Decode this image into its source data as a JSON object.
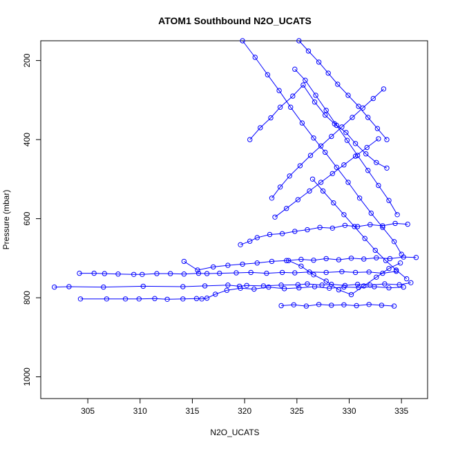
{
  "chart_data": {
    "type": "scatter",
    "title": "ATOM1 Southbound N2O_UCATS",
    "xlabel": "N2O_UCATS",
    "ylabel": "Pressure (mbar)",
    "xlim": [
      300.5,
      337.5
    ],
    "ylim": [
      1055,
      150
    ],
    "y_axis_reversed": true,
    "x_ticks": [
      305,
      310,
      315,
      320,
      325,
      330,
      335
    ],
    "y_ticks": [
      200,
      400,
      600,
      800,
      1000
    ],
    "grid": false,
    "legend": null,
    "series_color": "#0000ff",
    "marker": "open-circle",
    "line": true,
    "series": [
      {
        "x": [
          301.8,
          303.2,
          306.5,
          310.3,
          314.1,
          316.2,
          318.4,
          319.5,
          320.2,
          321.8,
          323.5,
          325.1,
          326.0,
          327.4,
          328.3,
          329.6,
          330.8,
          332.0,
          333.4,
          334.8,
          335.9
        ],
        "y": [
          773,
          772,
          773,
          771,
          772,
          770,
          768,
          771,
          769,
          770,
          768,
          767,
          765,
          768,
          766,
          769,
          766,
          768,
          765,
          767,
          762
        ]
      },
      {
        "x": [
          304.2,
          305.6,
          306.6,
          307.9,
          309.4,
          310.2,
          311.6,
          312.9,
          314.2,
          315.6,
          316.4,
          317.6,
          319.2,
          320.6,
          322.1,
          323.6,
          324.8,
          326.2,
          327.8,
          329.3,
          330.6,
          331.9,
          333.2,
          334.5
        ],
        "y": [
          738,
          738,
          739,
          740,
          741,
          741,
          739,
          739,
          740,
          738,
          739,
          738,
          737,
          736,
          738,
          736,
          737,
          735,
          736,
          734,
          736,
          735,
          738,
          733
        ]
      },
      {
        "x": [
          304.3,
          306.8,
          308.6,
          309.9,
          311.4,
          312.6,
          314.1,
          315.4,
          315.9,
          316.4,
          317.2,
          318.3,
          319.6,
          320.9,
          322.3,
          323.8,
          325.2,
          326.7,
          328.1,
          329.5,
          330.9,
          332.4,
          333.8,
          335.2
        ],
        "y": [
          803,
          803,
          803,
          803,
          802,
          804,
          803,
          802,
          803,
          801,
          791,
          781,
          776,
          778,
          773,
          777,
          775,
          772,
          776,
          773,
          774,
          772,
          775,
          773
        ]
      },
      {
        "x": [
          314.2,
          315.5,
          317.0,
          318.4,
          319.8,
          321.2,
          322.6,
          324.0,
          325.4,
          326.6,
          327.8,
          329.0,
          330.2,
          331.4,
          332.6,
          333.9,
          335.2,
          336.4
        ],
        "y": [
          708,
          730,
          722,
          718,
          715,
          712,
          708,
          706,
          703,
          705,
          701,
          704,
          700,
          702,
          699,
          701,
          697,
          698
        ]
      },
      {
        "x": [
          319.6,
          320.5,
          321.2,
          322.4,
          323.6,
          324.8,
          326.0,
          327.2,
          328.4,
          329.6,
          330.8,
          332.0,
          333.2,
          334.4,
          335.6
        ],
        "y": [
          666,
          657,
          648,
          640,
          638,
          632,
          628,
          622,
          624,
          617,
          620,
          615,
          618,
          612,
          614
        ]
      },
      {
        "x": [
          320.5,
          321.5,
          322.5,
          323.4,
          324.6,
          325.6,
          326.7,
          327.7,
          328.6,
          329.7,
          330.6,
          331.6,
          332.6,
          333.6
        ],
        "y": [
          400,
          370,
          345,
          318,
          290,
          262,
          305,
          338,
          360,
          382,
          410,
          436,
          458,
          472
        ]
      },
      {
        "x": [
          319.8,
          321.0,
          322.2,
          323.3,
          324.4,
          325.5,
          326.6,
          327.7,
          328.8,
          329.9,
          331.0,
          332.1,
          333.2,
          334.3,
          335.0
        ],
        "y": [
          150,
          192,
          236,
          276,
          318,
          358,
          396,
          432,
          470,
          508,
          548,
          586,
          622,
          658,
          690
        ]
      },
      {
        "x": [
          322.6,
          323.4,
          324.3,
          325.3,
          326.3,
          327.3,
          328.3,
          329.3,
          330.3,
          331.3,
          332.3,
          333.3
        ],
        "y": [
          548,
          520,
          492,
          466,
          440,
          416,
          392,
          368,
          344,
          320,
          296,
          272
        ]
      },
      {
        "x": [
          324.8,
          325.8,
          326.8,
          327.8,
          328.8,
          329.8,
          330.8,
          331.8,
          332.8,
          333.8,
          334.6
        ],
        "y": [
          222,
          250,
          288,
          326,
          364,
          402,
          440,
          478,
          516,
          554,
          590
        ]
      },
      {
        "x": [
          325.2,
          326.1,
          327.1,
          328.0,
          328.9,
          329.9,
          330.9,
          331.8,
          332.7,
          333.6
        ],
        "y": [
          150,
          176,
          204,
          232,
          260,
          288,
          316,
          344,
          372,
          400
        ]
      },
      {
        "x": [
          326.5,
          327.5,
          328.5,
          329.5,
          330.5,
          331.5,
          332.5,
          333.5,
          334.5,
          335.5
        ],
        "y": [
          500,
          530,
          560,
          590,
          620,
          650,
          680,
          706,
          730,
          752
        ]
      },
      {
        "x": [
          323.5,
          324.7,
          325.9,
          327.1,
          328.3,
          329.5,
          330.7,
          331.9,
          333.1,
          334.3
        ],
        "y": [
          820,
          818,
          821,
          817,
          819,
          818,
          820,
          817,
          819,
          821
        ]
      },
      {
        "x": [
          324.2,
          325.4,
          326.6,
          327.8,
          329.0,
          330.2,
          331.4,
          332.6,
          333.8,
          334.9
        ],
        "y": [
          706,
          720,
          742,
          758,
          780,
          792,
          770,
          748,
          726,
          712
        ]
      },
      {
        "x": [
          322.9,
          324.0,
          325.1,
          326.2,
          327.3,
          328.4,
          329.5,
          330.6,
          331.7,
          332.8
        ],
        "y": [
          596,
          574,
          552,
          530,
          508,
          486,
          464,
          442,
          420,
          398
        ]
      }
    ]
  }
}
